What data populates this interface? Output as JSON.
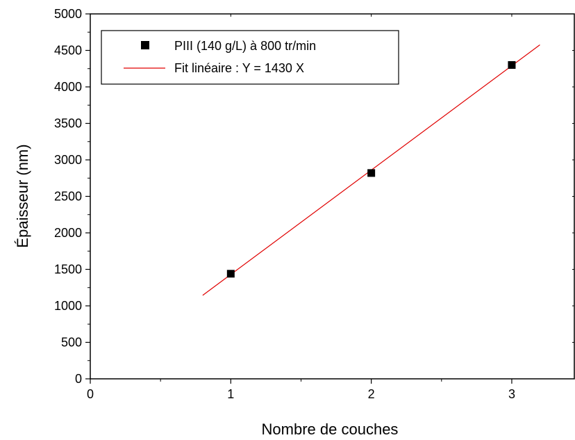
{
  "chart_data": {
    "type": "scatter",
    "xlabel": "Nombre de couches",
    "ylabel": "Épaisseur (nm)",
    "xlim": [
      0,
      3.45
    ],
    "ylim": [
      0,
      5000
    ],
    "x_ticks": [
      0,
      1,
      2,
      3
    ],
    "x_tick_labels": [
      "0",
      "1",
      "2",
      "3"
    ],
    "y_ticks": [
      0,
      500,
      1000,
      1500,
      2000,
      2500,
      3000,
      3500,
      4000,
      4500,
      5000
    ],
    "y_tick_labels": [
      "0",
      "500",
      "1000",
      "1500",
      "2000",
      "2500",
      "3000",
      "3500",
      "4000",
      "4500",
      "5000"
    ],
    "grid": false,
    "legend_position": "top-left",
    "series": [
      {
        "name": "PIII (140 g/L) à 800 tr/min",
        "kind": "scatter",
        "marker": "square",
        "color": "#000000",
        "x": [
          1,
          2,
          3
        ],
        "y": [
          1440,
          2820,
          4300
        ]
      },
      {
        "name": "Fit linéaire : Y = 1430 X",
        "kind": "line",
        "color": "#e00000",
        "x": [
          0.8,
          3.2
        ],
        "y": [
          1144,
          4576
        ]
      }
    ]
  }
}
